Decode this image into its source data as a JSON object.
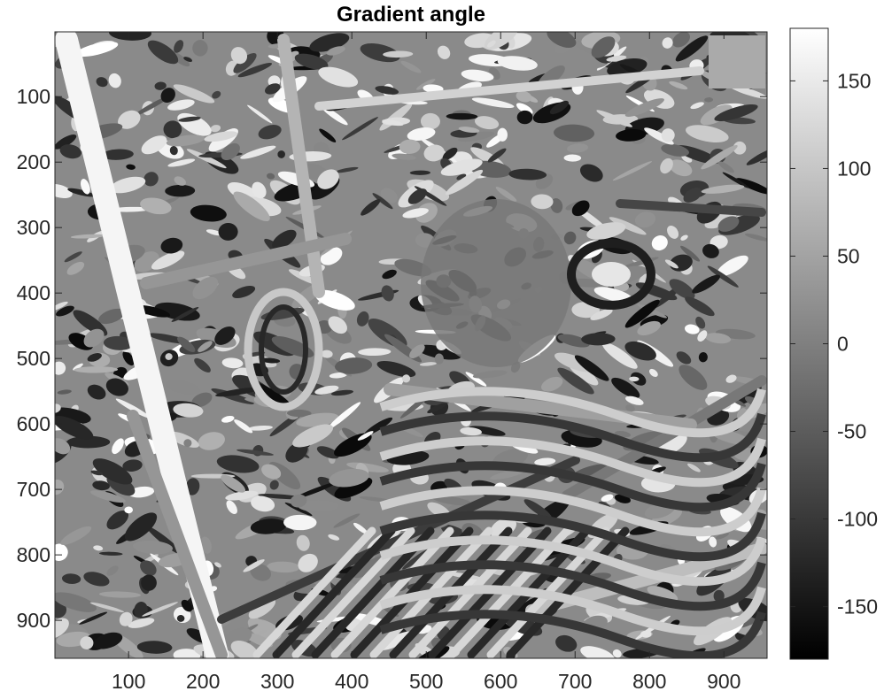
{
  "title": "Gradient angle",
  "image": {
    "description_name": "gradient-angle-map",
    "x_range": [
      1,
      958
    ],
    "y_range": [
      1,
      958
    ],
    "x_ticks": [
      100,
      200,
      300,
      400,
      500,
      600,
      700,
      800,
      900
    ],
    "y_ticks": [
      100,
      200,
      300,
      400,
      500,
      600,
      700,
      800,
      900
    ]
  },
  "colorbar": {
    "colormap": "gray",
    "range": [
      -180,
      180
    ],
    "ticks": [
      150,
      100,
      50,
      0,
      -50,
      -100,
      -150
    ]
  },
  "colors": {
    "axis": "#262626",
    "title": "#000000",
    "background": "#ffffff"
  }
}
